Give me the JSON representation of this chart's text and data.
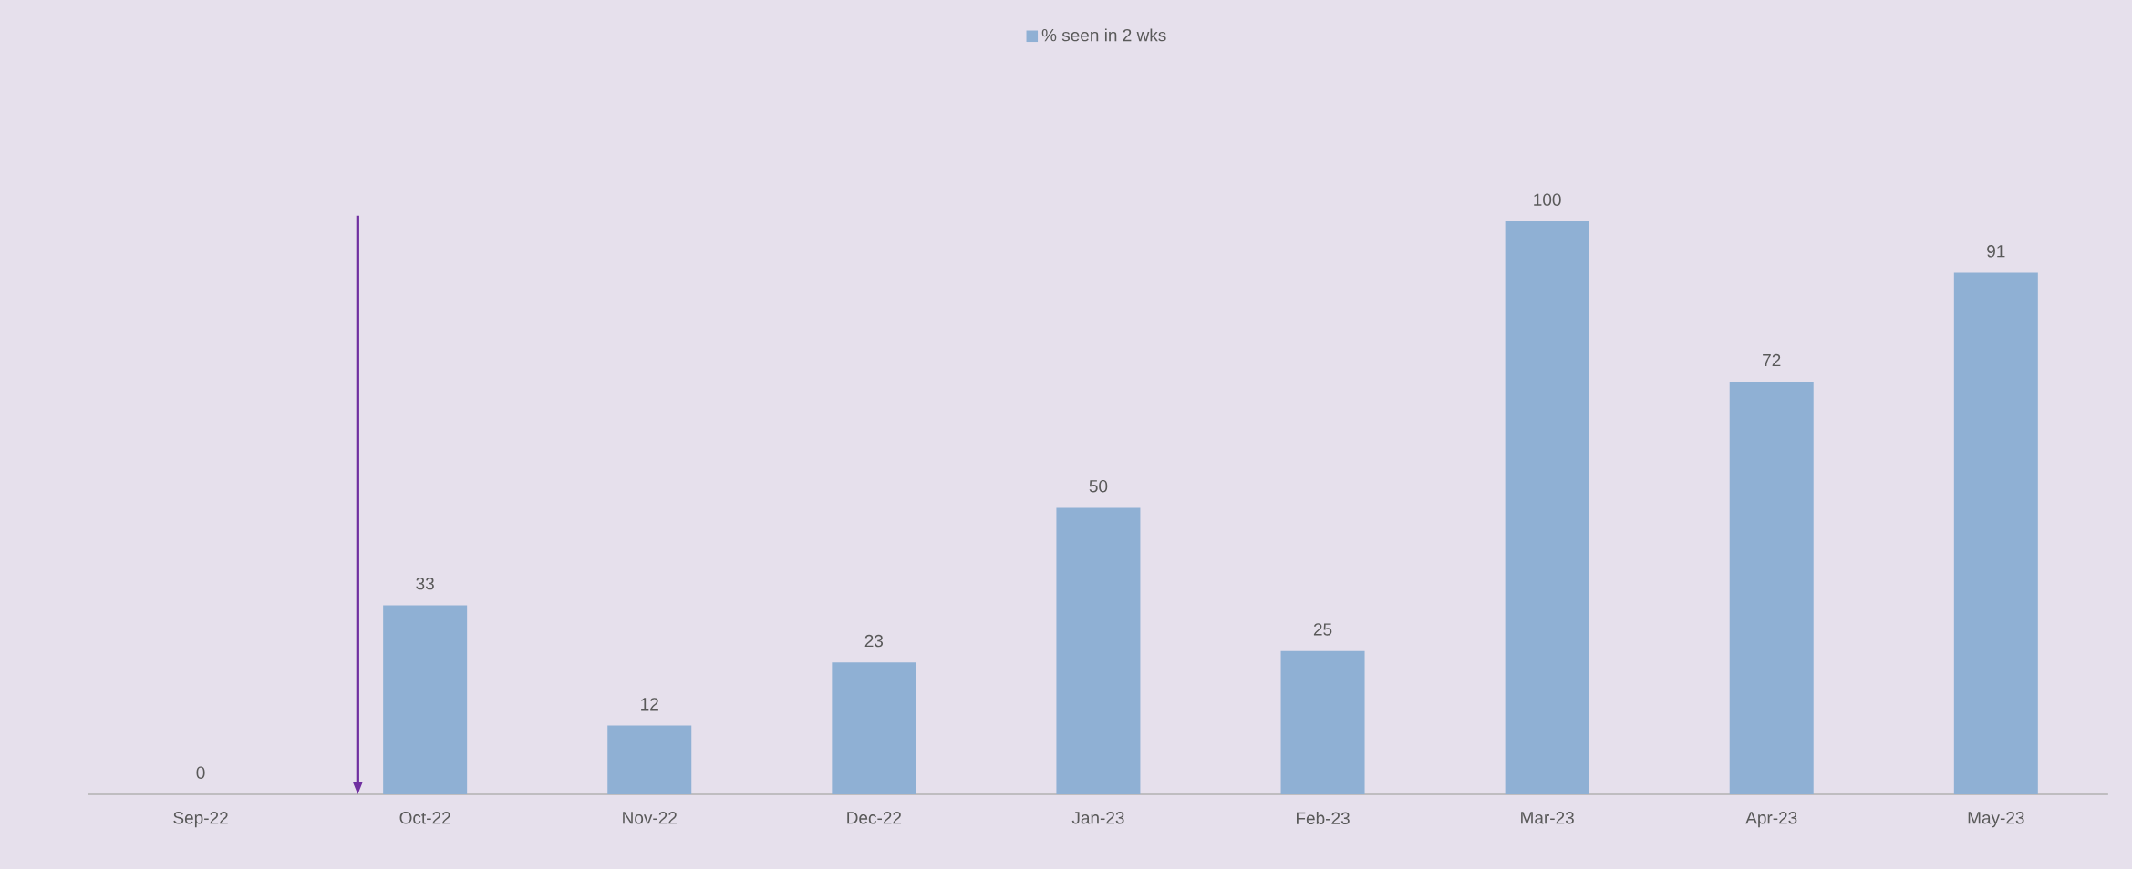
{
  "chart_data": {
    "type": "bar",
    "categories": [
      "Sep-22",
      "Oct-22",
      "Nov-22",
      "Dec-22",
      "Jan-23",
      "Feb-23",
      "Mar-23",
      "Apr-23",
      "May-23"
    ],
    "series": [
      {
        "name": "% seen in 2 wks",
        "color": "#8fb0d4",
        "values": [
          0,
          33,
          12,
          23,
          50,
          25,
          100,
          72,
          91
        ]
      }
    ],
    "data_labels": true,
    "legend": "top"
  }
}
